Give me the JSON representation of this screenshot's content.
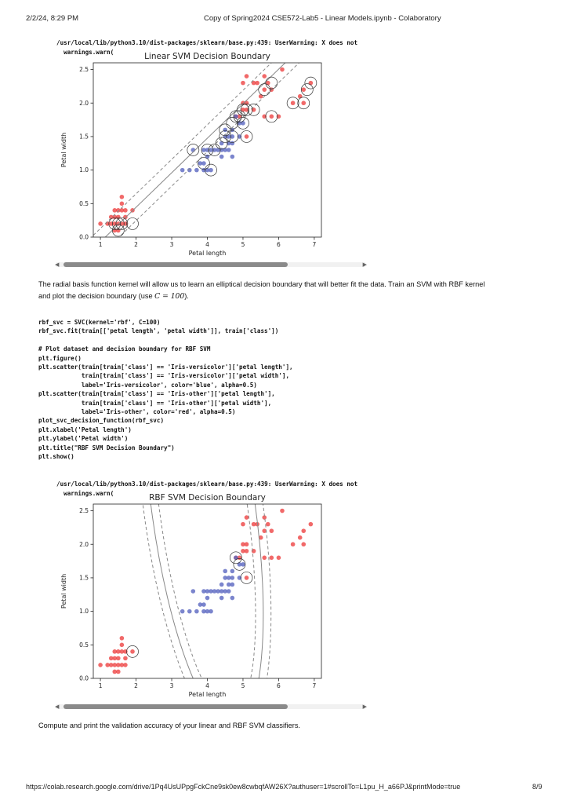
{
  "print_header": {
    "datetime": "2/2/24, 8:29 PM",
    "title": "Copy of Spring2024 CSE572-Lab5 - Linear Models.ipynb - Colaboratory"
  },
  "print_footer": {
    "url": "https://colab.research.google.com/drive/1Pq4UsUPpgFckCne9sk0ew8cwbqfAW26X?authuser=1#scrollTo=L1pu_H_a66PJ&printMode=true",
    "page": "8/9"
  },
  "outputs": {
    "warning1_line1": "/usr/local/lib/python3.10/dist-packages/sklearn/base.py:439: UserWarning: X does not",
    "warning1_line2": "  warnings.warn(",
    "warning2_line1": "/usr/local/lib/python3.10/dist-packages/sklearn/base.py:439: UserWarning: X does not",
    "warning2_line2": "  warnings.warn("
  },
  "markdown": {
    "rbf_intro_line1": "The radial basis function kernel will allow us to learn an elliptical decision boundary that will better fit the data. Train an SVM with RBF kernel",
    "rbf_intro_line2_pre": "and plot the decision boundary (use ",
    "rbf_intro_math": "C = 100",
    "rbf_intro_line2_post": ").",
    "compute_accuracy": "Compute and print the validation accuracy of your linear and RBF SVM classifiers."
  },
  "code_cell": {
    "lines": [
      "rbf_svc = SVC(kernel='rbf', C=100)",
      "rbf_svc.fit(train[['petal length', 'petal width']], train['class'])",
      "",
      "# Plot dataset and decision boundary for RBF SVM",
      "plt.figure()",
      "plt.scatter(train[train['class'] == 'Iris-versicolor']['petal length'],",
      "            train[train['class'] == 'Iris-versicolor']['petal width'],",
      "            label='Iris-versicolor', color='blue', alpha=0.5)",
      "plt.scatter(train[train['class'] == 'Iris-other']['petal length'],",
      "            train[train['class'] == 'Iris-other']['petal width'],",
      "            label='Iris-other', color='red', alpha=0.5)",
      "plot_svc_decision_function(rbf_svc)",
      "plt.xlabel('Petal length')",
      "plt.ylabel('Petal width')",
      "plt.title(\"RBF SVM Decision Boundary\")",
      "plt.show()"
    ]
  },
  "chart_data": [
    {
      "type": "scatter",
      "title": "Linear SVM Decision Boundary",
      "xlabel": "Petal length",
      "ylabel": "Petal width",
      "xlim": [
        0.8,
        7.2
      ],
      "ylim": [
        0.0,
        2.6
      ],
      "xticks": [
        "1",
        "2",
        "3",
        "4",
        "5",
        "6",
        "7"
      ],
      "yticks": [
        "0.0",
        "0.5",
        "1.0",
        "1.5",
        "2.0",
        "2.5"
      ],
      "grid": false,
      "colors": {
        "blue": "#5a66c0",
        "red": "#ee4444",
        "boundary": "#888888"
      },
      "series": [
        {
          "color": "red",
          "points": [
            [
              1.0,
              0.2
            ],
            [
              1.2,
              0.2
            ],
            [
              1.3,
              0.2
            ],
            [
              1.4,
              0.2
            ],
            [
              1.5,
              0.2
            ],
            [
              1.6,
              0.2
            ],
            [
              1.7,
              0.2
            ],
            [
              1.4,
              0.3
            ],
            [
              1.5,
              0.3
            ],
            [
              1.3,
              0.3
            ],
            [
              1.4,
              0.4
            ],
            [
              1.5,
              0.4
            ],
            [
              1.7,
              0.4
            ],
            [
              1.6,
              0.4
            ],
            [
              1.9,
              0.4
            ],
            [
              1.6,
              0.5
            ],
            [
              1.5,
              0.1
            ],
            [
              1.4,
              0.1
            ],
            [
              1.7,
              0.3
            ],
            [
              1.6,
              0.6
            ],
            [
              4.9,
              1.8
            ],
            [
              4.8,
              1.8
            ],
            [
              5.0,
              1.9
            ],
            [
              5.1,
              1.9
            ],
            [
              5.0,
              2.0
            ],
            [
              5.1,
              2.0
            ],
            [
              5.3,
              1.9
            ],
            [
              5.1,
              1.5
            ],
            [
              5.6,
              1.8
            ],
            [
              5.8,
              1.8
            ],
            [
              6.4,
              2.0
            ],
            [
              6.7,
              2.0
            ],
            [
              6.7,
              2.2
            ],
            [
              6.9,
              2.3
            ],
            [
              5.6,
              2.2
            ],
            [
              5.7,
              2.3
            ],
            [
              5.5,
              2.1
            ],
            [
              6.1,
              2.5
            ],
            [
              5.1,
              2.4
            ],
            [
              5.3,
              2.3
            ],
            [
              5.6,
              2.4
            ],
            [
              6.6,
              2.1
            ],
            [
              6.0,
              1.8
            ],
            [
              5.8,
              2.2
            ],
            [
              5.4,
              2.3
            ],
            [
              5.0,
              2.3
            ]
          ]
        },
        {
          "color": "blue",
          "points": [
            [
              3.3,
              1.0
            ],
            [
              3.5,
              1.0
            ],
            [
              3.7,
              1.0
            ],
            [
              3.9,
              1.0
            ],
            [
              4.0,
              1.0
            ],
            [
              4.1,
              1.0
            ],
            [
              3.8,
              1.1
            ],
            [
              3.9,
              1.1
            ],
            [
              4.0,
              1.2
            ],
            [
              3.6,
              1.3
            ],
            [
              3.9,
              1.3
            ],
            [
              4.0,
              1.3
            ],
            [
              4.1,
              1.3
            ],
            [
              4.2,
              1.3
            ],
            [
              4.4,
              1.3
            ],
            [
              4.5,
              1.3
            ],
            [
              4.3,
              1.3
            ],
            [
              4.4,
              1.4
            ],
            [
              4.6,
              1.4
            ],
            [
              4.7,
              1.4
            ],
            [
              4.5,
              1.5
            ],
            [
              4.6,
              1.5
            ],
            [
              4.7,
              1.5
            ],
            [
              4.9,
              1.5
            ],
            [
              4.5,
              1.6
            ],
            [
              4.7,
              1.6
            ],
            [
              4.8,
              1.8
            ],
            [
              4.9,
              1.7
            ],
            [
              5.0,
              1.7
            ],
            [
              4.7,
              1.2
            ],
            [
              4.6,
              1.3
            ],
            [
              4.4,
              1.2
            ]
          ]
        }
      ],
      "support_vectors": [
        [
          1.5,
          0.1
        ],
        [
          1.4,
          0.2
        ],
        [
          1.5,
          0.2
        ],
        [
          1.6,
          0.2
        ],
        [
          1.9,
          0.2
        ],
        [
          3.6,
          1.3
        ],
        [
          3.9,
          1.1
        ],
        [
          4.1,
          1.0
        ],
        [
          4.0,
          1.3
        ],
        [
          4.2,
          1.3
        ],
        [
          4.4,
          1.4
        ],
        [
          4.5,
          1.5
        ],
        [
          4.7,
          1.5
        ],
        [
          4.5,
          1.6
        ],
        [
          4.7,
          1.7
        ],
        [
          4.8,
          1.8
        ],
        [
          4.9,
          1.8
        ],
        [
          5.0,
          1.9
        ],
        [
          5.1,
          1.9
        ],
        [
          5.3,
          1.9
        ],
        [
          5.8,
          1.8
        ],
        [
          5.6,
          2.2
        ],
        [
          5.8,
          2.3
        ],
        [
          6.4,
          2.0
        ],
        [
          6.7,
          2.0
        ],
        [
          6.8,
          2.2
        ],
        [
          6.9,
          2.3
        ],
        [
          5.1,
          1.5
        ],
        [
          5.0,
          1.7
        ]
      ],
      "decision_boundary": {
        "slope": 0.42,
        "intercept": -0.55,
        "margin": 0.2
      }
    },
    {
      "type": "scatter",
      "title": "RBF SVM Decision Boundary",
      "xlabel": "Petal length",
      "ylabel": "Petal width",
      "xlim": [
        0.8,
        7.2
      ],
      "ylim": [
        0.0,
        2.6
      ],
      "xticks": [
        "1",
        "2",
        "3",
        "4",
        "5",
        "6",
        "7"
      ],
      "yticks": [
        "0.0",
        "0.5",
        "1.0",
        "1.5",
        "2.0",
        "2.5"
      ],
      "grid": false,
      "colors": {
        "blue": "#5a66c0",
        "red": "#ee4444",
        "boundary": "#888888"
      },
      "series": [
        {
          "color": "red",
          "points": [
            [
              1.0,
              0.2
            ],
            [
              1.2,
              0.2
            ],
            [
              1.3,
              0.2
            ],
            [
              1.4,
              0.2
            ],
            [
              1.5,
              0.2
            ],
            [
              1.6,
              0.2
            ],
            [
              1.7,
              0.2
            ],
            [
              1.4,
              0.3
            ],
            [
              1.5,
              0.3
            ],
            [
              1.3,
              0.3
            ],
            [
              1.4,
              0.4
            ],
            [
              1.5,
              0.4
            ],
            [
              1.7,
              0.4
            ],
            [
              1.6,
              0.4
            ],
            [
              1.9,
              0.4
            ],
            [
              1.6,
              0.5
            ],
            [
              1.5,
              0.1
            ],
            [
              1.4,
              0.1
            ],
            [
              1.7,
              0.3
            ],
            [
              1.6,
              0.6
            ],
            [
              4.9,
              1.8
            ],
            [
              4.8,
              1.8
            ],
            [
              5.0,
              1.9
            ],
            [
              5.1,
              1.9
            ],
            [
              5.0,
              2.0
            ],
            [
              5.1,
              2.0
            ],
            [
              5.3,
              1.9
            ],
            [
              5.1,
              1.5
            ],
            [
              5.6,
              1.8
            ],
            [
              5.8,
              1.8
            ],
            [
              6.4,
              2.0
            ],
            [
              6.7,
              2.0
            ],
            [
              6.7,
              2.2
            ],
            [
              6.9,
              2.3
            ],
            [
              5.6,
              2.2
            ],
            [
              5.7,
              2.3
            ],
            [
              5.5,
              2.1
            ],
            [
              6.1,
              2.5
            ],
            [
              5.1,
              2.4
            ],
            [
              5.3,
              2.3
            ],
            [
              5.6,
              2.4
            ],
            [
              6.6,
              2.1
            ],
            [
              6.0,
              1.8
            ],
            [
              5.8,
              2.2
            ],
            [
              5.4,
              2.3
            ],
            [
              5.0,
              2.3
            ]
          ]
        },
        {
          "color": "blue",
          "points": [
            [
              3.3,
              1.0
            ],
            [
              3.5,
              1.0
            ],
            [
              3.7,
              1.0
            ],
            [
              3.9,
              1.0
            ],
            [
              4.0,
              1.0
            ],
            [
              4.1,
              1.0
            ],
            [
              3.8,
              1.1
            ],
            [
              3.9,
              1.1
            ],
            [
              4.0,
              1.2
            ],
            [
              3.6,
              1.3
            ],
            [
              3.9,
              1.3
            ],
            [
              4.0,
              1.3
            ],
            [
              4.1,
              1.3
            ],
            [
              4.2,
              1.3
            ],
            [
              4.4,
              1.3
            ],
            [
              4.5,
              1.3
            ],
            [
              4.3,
              1.3
            ],
            [
              4.4,
              1.4
            ],
            [
              4.6,
              1.4
            ],
            [
              4.7,
              1.4
            ],
            [
              4.5,
              1.5
            ],
            [
              4.6,
              1.5
            ],
            [
              4.7,
              1.5
            ],
            [
              4.9,
              1.5
            ],
            [
              4.5,
              1.6
            ],
            [
              4.7,
              1.6
            ],
            [
              4.8,
              1.8
            ],
            [
              4.9,
              1.7
            ],
            [
              5.0,
              1.7
            ],
            [
              4.7,
              1.2
            ],
            [
              4.6,
              1.3
            ],
            [
              4.4,
              1.2
            ]
          ]
        }
      ],
      "support_vectors": [
        [
          1.9,
          0.4
        ],
        [
          4.8,
          1.8
        ],
        [
          4.9,
          1.7
        ],
        [
          5.1,
          1.5
        ]
      ],
      "decision_boundary": {
        "center": [
          3.9,
          2.5
        ],
        "rx": 1.45,
        "ry": 3.25,
        "margin": 0.22
      }
    }
  ]
}
